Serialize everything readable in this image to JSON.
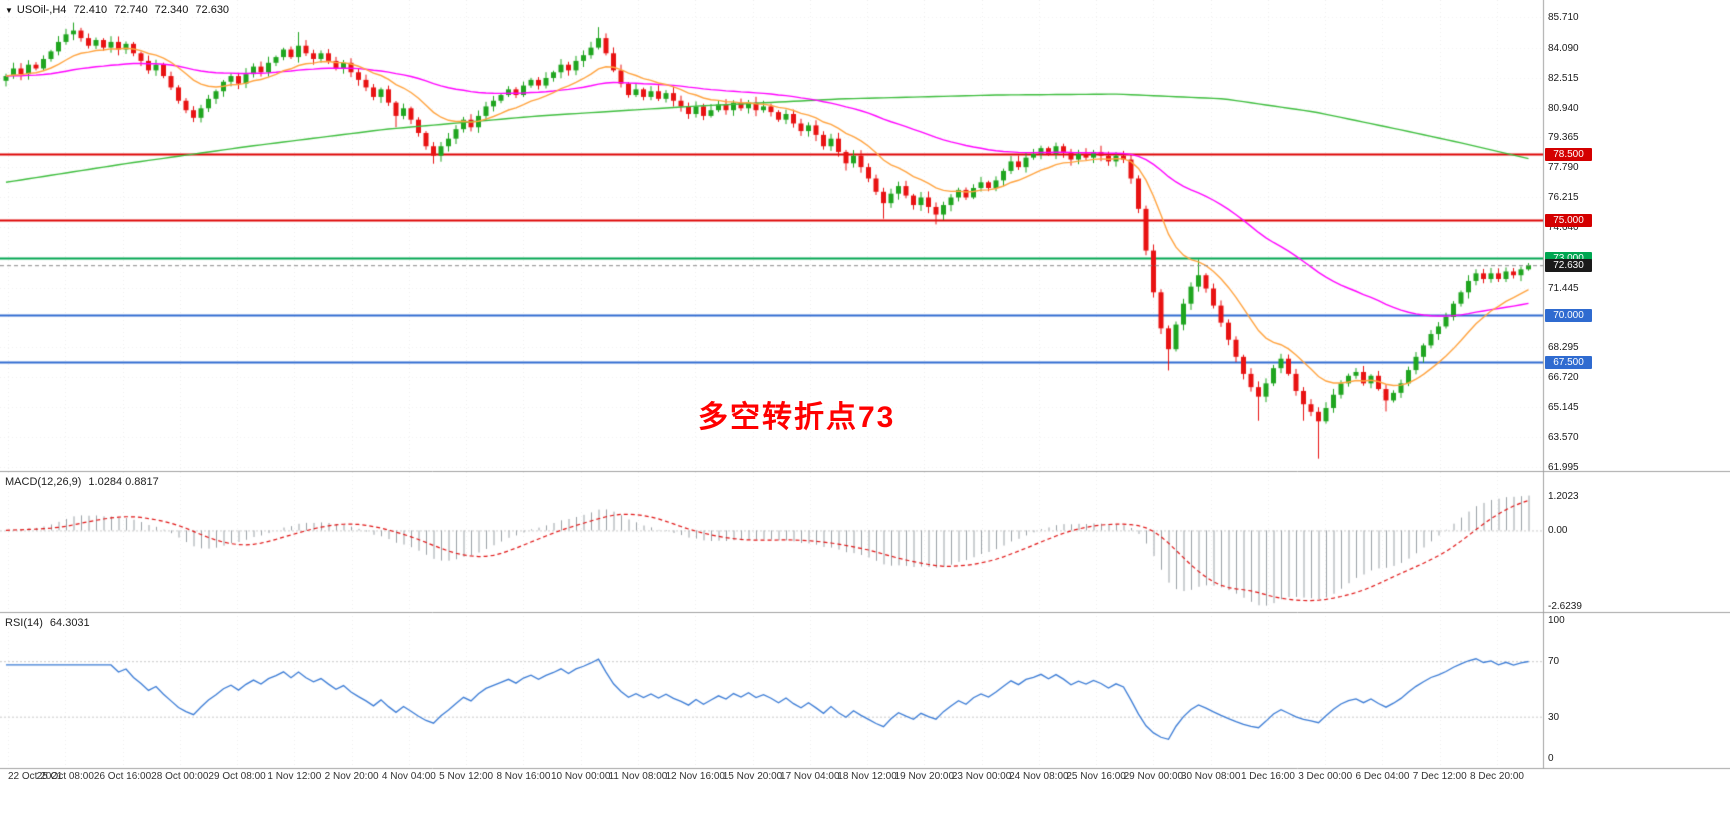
{
  "header": {
    "dropdown_icon": "▼",
    "symbol": "USOil-,H4",
    "open": "72.410",
    "high": "72.740",
    "low": "72.340",
    "close": "72.630"
  },
  "annotation": {
    "text": "多空转折点73",
    "color": "#FF0000"
  },
  "indicators": {
    "macd": {
      "label": "MACD(12,26,9)",
      "values": "1.0284 0.8817",
      "ticks": [
        "1.2023",
        "0.00",
        "-2.6239"
      ],
      "tick_values": [
        1.2023,
        0,
        -2.6239
      ],
      "ylim": [
        -2.84,
        2.0
      ],
      "params": [
        12,
        26,
        9
      ],
      "histogram_color": "#9aa0a6",
      "signal_color": "#e01515",
      "zero_line_color": "#cccccc"
    },
    "rsi": {
      "label": "RSI(14)",
      "value": "64.3031",
      "ticks": [
        "100",
        "70",
        "30",
        "0"
      ],
      "tick_values": [
        100,
        70,
        30,
        0
      ],
      "levels": [
        70,
        30
      ],
      "ylim": [
        -7,
        104
      ],
      "period": 14,
      "line_color": "#3a7bd5",
      "level_color": "#c9c9c9"
    }
  },
  "price_axis": {
    "ticks": [
      "85.710",
      "84.090",
      "82.515",
      "80.940",
      "79.365",
      "77.790",
      "76.215",
      "74.640",
      "71.445",
      "68.295",
      "66.720",
      "65.145",
      "63.570",
      "61.995"
    ],
    "badges": [
      {
        "text": "78.500",
        "price": 78.5,
        "bg": "#d40000"
      },
      {
        "text": "75.000",
        "price": 75.0,
        "bg": "#d40000"
      },
      {
        "text": "73.000",
        "price": 73.0,
        "bg": "#00a651"
      },
      {
        "text": "70.000",
        "price": 70.0,
        "bg": "#2f6bd0"
      },
      {
        "text": "67.500",
        "price": 67.5,
        "bg": "#2f6bd0"
      },
      {
        "text": "72.630",
        "price": 72.63,
        "bg": "#1a1a1a"
      }
    ]
  },
  "chart_data": {
    "type": "candlestick",
    "symbol": "USOil",
    "timeframe": "H4",
    "title": "USOil-,H4",
    "ylim": [
      61.78,
      86.61
    ],
    "x_ticks": [
      "22 Oct 2021",
      "25 Oct 08:00",
      "26 Oct 16:00",
      "28 Oct 00:00",
      "29 Oct 08:00",
      "1 Nov 12:00",
      "2 Nov 20:00",
      "4 Nov 04:00",
      "5 Nov 12:00",
      "8 Nov 16:00",
      "10 Nov 00:00",
      "11 Nov 08:00",
      "12 Nov 16:00",
      "15 Nov 20:00",
      "17 Nov 04:00",
      "18 Nov 12:00",
      "19 Nov 20:00",
      "23 Nov 00:00",
      "24 Nov 08:00",
      "25 Nov 16:00",
      "29 Nov 00:00",
      "30 Nov 08:00",
      "1 Dec 16:00",
      "3 Dec 00:00",
      "6 Dec 04:00",
      "7 Dec 12:00",
      "8 Dec 20:00"
    ],
    "up_color": "#1fa51f",
    "down_color": "#e81212",
    "closes": [
      82.6,
      83.0,
      82.7,
      83.2,
      83.0,
      83.5,
      83.9,
      84.4,
      84.8,
      85.0,
      84.6,
      84.2,
      84.5,
      84.1,
      84.4,
      84.0,
      84.3,
      83.8,
      83.4,
      82.9,
      83.2,
      82.6,
      82.0,
      81.3,
      80.8,
      80.4,
      80.9,
      81.4,
      81.8,
      82.3,
      82.6,
      82.2,
      82.7,
      83.1,
      82.8,
      83.3,
      83.6,
      84.0,
      83.6,
      84.2,
      83.8,
      83.5,
      83.8,
      83.4,
      83.0,
      83.3,
      82.8,
      82.4,
      82.0,
      81.5,
      81.9,
      81.2,
      80.5,
      80.9,
      80.3,
      79.6,
      78.9,
      78.4,
      78.9,
      79.3,
      79.8,
      80.3,
      79.9,
      80.5,
      81.0,
      81.3,
      81.6,
      81.9,
      81.6,
      82.1,
      82.4,
      82.1,
      82.5,
      82.8,
      83.2,
      82.9,
      83.4,
      83.7,
      84.1,
      84.6,
      83.8,
      82.9,
      82.2,
      81.6,
      81.9,
      81.5,
      81.8,
      81.4,
      81.7,
      81.3,
      81.0,
      80.6,
      81.0,
      80.5,
      80.8,
      81.1,
      80.8,
      81.2,
      80.9,
      81.2,
      80.8,
      81.0,
      80.7,
      80.3,
      80.6,
      80.1,
      79.7,
      80.0,
      79.5,
      78.9,
      79.3,
      78.6,
      78.0,
      78.4,
      77.8,
      77.2,
      76.5,
      75.9,
      76.4,
      76.8,
      76.3,
      75.8,
      76.2,
      75.7,
      75.3,
      75.8,
      76.2,
      76.6,
      76.2,
      76.7,
      77.0,
      76.7,
      77.1,
      77.6,
      78.1,
      77.8,
      78.3,
      78.5,
      78.8,
      78.5,
      78.9,
      78.6,
      78.2,
      78.5,
      78.3,
      78.6,
      78.4,
      78.1,
      78.4,
      78.2,
      77.2,
      75.6,
      73.4,
      71.2,
      69.3,
      68.2,
      69.5,
      70.6,
      71.5,
      72.1,
      71.4,
      70.5,
      69.6,
      68.7,
      67.8,
      66.9,
      66.2,
      65.7,
      66.4,
      67.2,
      67.7,
      66.9,
      66.0,
      65.3,
      64.9,
      64.4,
      65.1,
      65.8,
      66.4,
      66.8,
      67.0,
      66.4,
      66.8,
      66.1,
      65.5,
      65.9,
      66.4,
      67.1,
      67.8,
      68.4,
      69.0,
      69.4,
      69.9,
      70.6,
      71.2,
      71.8,
      72.2,
      71.9,
      72.2,
      71.9,
      72.3,
      72.1,
      72.41,
      72.63
    ],
    "wick_overrides": {
      "9": [
        85.42,
        null
      ],
      "39": [
        84.92,
        null
      ],
      "52": [
        null,
        79.9
      ],
      "57": [
        null,
        77.98
      ],
      "79": [
        85.18,
        null
      ],
      "112": [
        null,
        77.62
      ],
      "117": [
        null,
        75.08
      ],
      "124": [
        null,
        74.78
      ],
      "155": [
        null,
        67.08
      ],
      "159": [
        72.93,
        null
      ],
      "167": [
        null,
        64.43
      ],
      "173": [
        null,
        64.43
      ],
      "175": [
        null,
        62.43
      ],
      "184": [
        null,
        64.92
      ],
      "203": [
        72.74,
        72.34
      ]
    },
    "hlines": [
      {
        "price": 78.5,
        "color": "#dd0000",
        "width": 2
      },
      {
        "price": 75.0,
        "color": "#dd0000",
        "width": 2
      },
      {
        "price": 73.0,
        "color": "#00a651",
        "width": 2
      },
      {
        "price": 70.0,
        "color": "#2f6bd0",
        "width": 2
      },
      {
        "price": 67.5,
        "color": "#2f6bd0",
        "width": 2
      }
    ],
    "current_price": {
      "value": 72.63,
      "line_color": "#888888"
    },
    "overlays": [
      {
        "name": "ma-slow-green",
        "type": "anchors",
        "color": "#3dbd3d",
        "anchors": [
          [
            0,
            77.0
          ],
          [
            0.08,
            78.0
          ],
          [
            0.16,
            78.9
          ],
          [
            0.25,
            79.8
          ],
          [
            0.35,
            80.5
          ],
          [
            0.45,
            81.0
          ],
          [
            0.55,
            81.4
          ],
          [
            0.65,
            81.6
          ],
          [
            0.73,
            81.65
          ],
          [
            0.8,
            81.4
          ],
          [
            0.86,
            80.7
          ],
          [
            0.92,
            79.7
          ],
          [
            0.96,
            79.0
          ],
          [
            1,
            78.25
          ]
        ]
      },
      {
        "name": "ma-medium-magenta",
        "type": "ema",
        "period": 55,
        "color": "#ff00ff"
      },
      {
        "name": "ma-fast-orange",
        "type": "ema",
        "period": 13,
        "color": "#ffa33f"
      }
    ],
    "grid_color": "#ededed"
  }
}
